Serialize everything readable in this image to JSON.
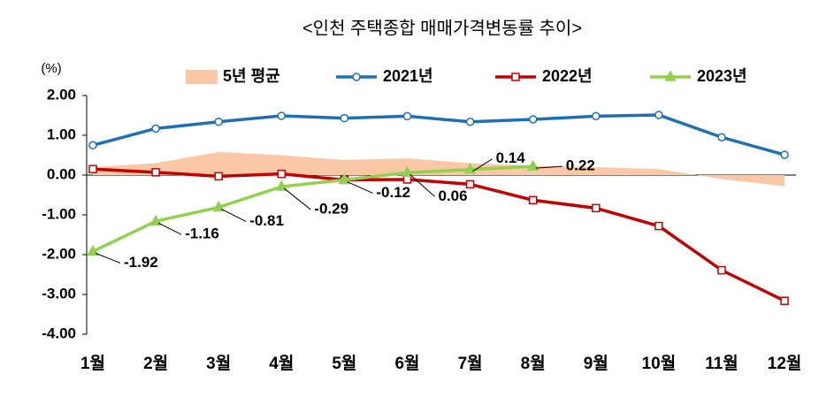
{
  "chart_data": {
    "type": "line",
    "title": "<인천 주택종합 매매가격변동률 추이>",
    "y_label": "(%)",
    "categories": [
      "1월",
      "2월",
      "3월",
      "4월",
      "5월",
      "6월",
      "7월",
      "8월",
      "9월",
      "10월",
      "11월",
      "12월"
    ],
    "ylim": [
      -4,
      2
    ],
    "yticks": [
      {
        "value": 2,
        "label": "2.00"
      },
      {
        "value": 1,
        "label": "1.00"
      },
      {
        "value": 0,
        "label": "0.00"
      },
      {
        "value": -1,
        "label": "-1.00"
      },
      {
        "value": -2,
        "label": "-2.00"
      },
      {
        "value": -3,
        "label": "-3.00"
      },
      {
        "value": -4,
        "label": "-4.00"
      }
    ],
    "series": [
      {
        "name": "5년 평균",
        "kind": "area",
        "color": "#fac8a6",
        "values": [
          0.2,
          0.3,
          0.58,
          0.5,
          0.38,
          0.42,
          0.3,
          0.23,
          0.2,
          0.15,
          -0.1,
          -0.28
        ]
      },
      {
        "name": "2021년",
        "kind": "line",
        "marker": "circle",
        "color": "#1f6fb4",
        "values": [
          0.75,
          1.17,
          1.34,
          1.49,
          1.43,
          1.48,
          1.34,
          1.4,
          1.48,
          1.51,
          0.95,
          0.51
        ]
      },
      {
        "name": "2022년",
        "kind": "line",
        "marker": "square",
        "color": "#c00000",
        "values": [
          0.15,
          0.07,
          -0.03,
          0.03,
          -0.12,
          -0.11,
          -0.23,
          -0.63,
          -0.83,
          -1.28,
          -2.39,
          -3.16
        ]
      },
      {
        "name": "2023년",
        "kind": "line",
        "marker": "triangle",
        "color": "#92d050",
        "show_labels": true,
        "values": [
          -1.92,
          -1.16,
          -0.81,
          -0.29,
          -0.12,
          0.06,
          0.14,
          0.22,
          null,
          null,
          null,
          null
        ]
      }
    ]
  }
}
